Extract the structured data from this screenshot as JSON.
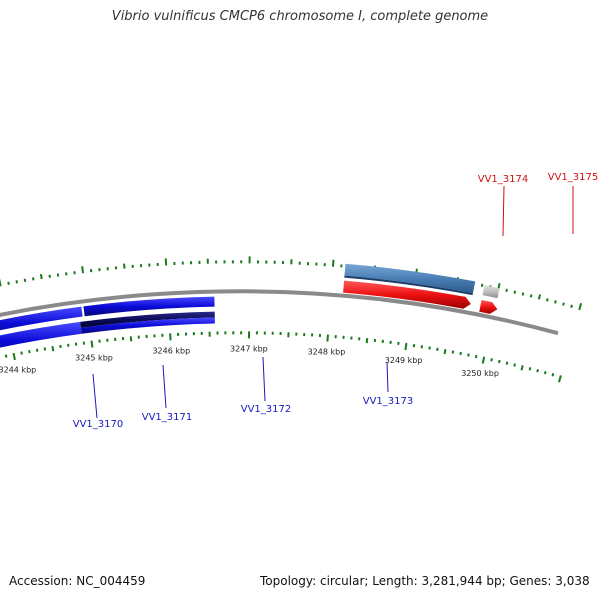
{
  "title": "Vibrio vulnificus CMCP6 chromosome I, complete genome",
  "footer": {
    "accession": "Accession: NC_004459",
    "summary": "Topology: circular; Length: 3,281,944 bp; Genes: 3,038"
  },
  "colors": {
    "forward_gene": "#0b0bd8",
    "reverse_gene": "#ee1111",
    "selected_gene": "#4a7fb5",
    "pseudo_gene": "#c0c0c0",
    "tick": "#1a7a1a",
    "backbone": "#8a8a8a",
    "forward_label": "#1818c0",
    "reverse_label": "#d01010"
  },
  "axis": {
    "unit": "kbp",
    "ticks": [
      "3244 kbp",
      "3245 kbp",
      "3246 kbp",
      "3247 kbp",
      "3248 kbp",
      "3249 kbp",
      "3250 kbp"
    ]
  },
  "genes": [
    {
      "name": "VV1_3170",
      "strand": "forward"
    },
    {
      "name": "VV1_3171",
      "strand": "forward"
    },
    {
      "name": "VV1_3172",
      "strand": "forward"
    },
    {
      "name": "VV1_3173",
      "strand": "forward"
    },
    {
      "name": "VV1_3174",
      "strand": "reverse"
    },
    {
      "name": "VV1_3175",
      "strand": "reverse"
    }
  ]
}
